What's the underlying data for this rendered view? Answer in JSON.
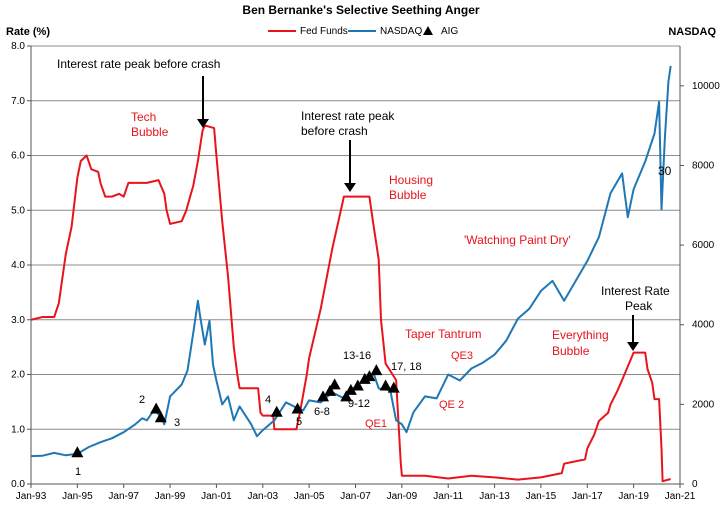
{
  "chart_data": {
    "type": "line",
    "title": "Ben Bernanke's Selective Seething Anger",
    "ylabel_left": "Rate (%)",
    "ylabel_right": "NASDAQ",
    "xlim": [
      1993.0,
      2021.0
    ],
    "ylim_left": [
      0,
      8
    ],
    "ylim_right": [
      0,
      11000
    ],
    "x_ticks": [
      "Jan-93",
      "Jan-95",
      "Jan-97",
      "Jan-99",
      "Jan-01",
      "Jan-03",
      "Jan-05",
      "Jan-07",
      "Jan-09",
      "Jan-11",
      "Jan-13",
      "Jan-15",
      "Jan-17",
      "Jan-19",
      "Jan-21"
    ],
    "y_ticks_left": [
      "0.0",
      "1.0",
      "2.0",
      "3.0",
      "4.0",
      "5.0",
      "6.0",
      "7.0",
      "8.0"
    ],
    "y_ticks_right": [
      "0",
      "2000",
      "4000",
      "6000",
      "8000",
      "10000"
    ],
    "grid": true,
    "legend_position": "top-center",
    "legend": [
      "Fed Funds",
      "NASDAQ",
      "AIG"
    ],
    "series": [
      {
        "name": "Fed Funds",
        "axis": "left",
        "color": "#e8141b",
        "points": [
          [
            1993.0,
            3.0
          ],
          [
            1993.5,
            3.05
          ],
          [
            1994.0,
            3.05
          ],
          [
            1994.2,
            3.3
          ],
          [
            1994.5,
            4.2
          ],
          [
            1994.75,
            4.7
          ],
          [
            1995.0,
            5.6
          ],
          [
            1995.15,
            5.9
          ],
          [
            1995.4,
            6.0
          ],
          [
            1995.6,
            5.75
          ],
          [
            1995.9,
            5.7
          ],
          [
            1996.0,
            5.5
          ],
          [
            1996.2,
            5.25
          ],
          [
            1996.5,
            5.25
          ],
          [
            1996.8,
            5.3
          ],
          [
            1997.0,
            5.25
          ],
          [
            1997.2,
            5.5
          ],
          [
            1997.5,
            5.5
          ],
          [
            1998.0,
            5.5
          ],
          [
            1998.5,
            5.55
          ],
          [
            1998.75,
            5.3
          ],
          [
            1998.85,
            5.0
          ],
          [
            1999.0,
            4.75
          ],
          [
            1999.5,
            4.8
          ],
          [
            1999.7,
            5.0
          ],
          [
            1999.9,
            5.3
          ],
          [
            2000.0,
            5.45
          ],
          [
            2000.2,
            5.9
          ],
          [
            2000.4,
            6.45
          ],
          [
            2000.5,
            6.55
          ],
          [
            2000.9,
            6.5
          ],
          [
            2001.0,
            6.0
          ],
          [
            2001.25,
            4.8
          ],
          [
            2001.5,
            3.8
          ],
          [
            2001.75,
            2.5
          ],
          [
            2001.9,
            2.0
          ],
          [
            2002.0,
            1.75
          ],
          [
            2002.8,
            1.75
          ],
          [
            2002.9,
            1.3
          ],
          [
            2003.0,
            1.25
          ],
          [
            2003.45,
            1.25
          ],
          [
            2003.5,
            1.0
          ],
          [
            2004.45,
            1.0
          ],
          [
            2004.6,
            1.3
          ],
          [
            2004.9,
            2.0
          ],
          [
            2005.0,
            2.3
          ],
          [
            2005.5,
            3.2
          ],
          [
            2006.0,
            4.3
          ],
          [
            2006.5,
            5.25
          ],
          [
            2007.0,
            5.25
          ],
          [
            2007.6,
            5.25
          ],
          [
            2007.75,
            4.8
          ],
          [
            2008.0,
            4.1
          ],
          [
            2008.1,
            3.0
          ],
          [
            2008.3,
            2.2
          ],
          [
            2008.75,
            1.9
          ],
          [
            2008.95,
            0.4
          ],
          [
            2009.0,
            0.15
          ],
          [
            2010.0,
            0.15
          ],
          [
            2011.0,
            0.1
          ],
          [
            2012.0,
            0.15
          ],
          [
            2013.0,
            0.12
          ],
          [
            2014.0,
            0.08
          ],
          [
            2015.0,
            0.12
          ],
          [
            2015.9,
            0.2
          ],
          [
            2016.0,
            0.37
          ],
          [
            2016.9,
            0.45
          ],
          [
            2017.0,
            0.65
          ],
          [
            2017.3,
            0.9
          ],
          [
            2017.5,
            1.15
          ],
          [
            2017.9,
            1.3
          ],
          [
            2018.0,
            1.45
          ],
          [
            2018.3,
            1.7
          ],
          [
            2018.5,
            1.9
          ],
          [
            2018.8,
            2.2
          ],
          [
            2019.0,
            2.4
          ],
          [
            2019.5,
            2.4
          ],
          [
            2019.6,
            2.1
          ],
          [
            2019.8,
            1.85
          ],
          [
            2019.9,
            1.55
          ],
          [
            2020.1,
            1.55
          ],
          [
            2020.2,
            0.65
          ],
          [
            2020.25,
            0.05
          ],
          [
            2020.5,
            0.08
          ],
          [
            2020.6,
            0.09
          ]
        ]
      },
      {
        "name": "NASDAQ",
        "axis": "right",
        "color": "#1f78b4",
        "points": [
          [
            1993.0,
            700
          ],
          [
            1993.5,
            710
          ],
          [
            1994.0,
            780
          ],
          [
            1994.5,
            720
          ],
          [
            1995.0,
            760
          ],
          [
            1995.5,
            930
          ],
          [
            1996.0,
            1050
          ],
          [
            1996.5,
            1150
          ],
          [
            1997.0,
            1300
          ],
          [
            1997.5,
            1500
          ],
          [
            1997.8,
            1650
          ],
          [
            1998.0,
            1600
          ],
          [
            1998.3,
            1850
          ],
          [
            1998.6,
            1700
          ],
          [
            1998.75,
            1500
          ],
          [
            1999.0,
            2200
          ],
          [
            1999.5,
            2500
          ],
          [
            1999.75,
            2850
          ],
          [
            2000.0,
            3800
          ],
          [
            2000.2,
            4600
          ],
          [
            2000.3,
            4200
          ],
          [
            2000.5,
            3500
          ],
          [
            2000.7,
            4100
          ],
          [
            2000.85,
            3000
          ],
          [
            2001.0,
            2600
          ],
          [
            2001.25,
            2000
          ],
          [
            2001.5,
            2200
          ],
          [
            2001.75,
            1600
          ],
          [
            2002.0,
            1950
          ],
          [
            2002.5,
            1500
          ],
          [
            2002.75,
            1200
          ],
          [
            2003.0,
            1350
          ],
          [
            2003.5,
            1600
          ],
          [
            2004.0,
            2050
          ],
          [
            2004.5,
            1900
          ],
          [
            2004.75,
            1850
          ],
          [
            2005.0,
            2100
          ],
          [
            2005.5,
            2050
          ],
          [
            2006.0,
            2300
          ],
          [
            2006.5,
            2150
          ],
          [
            2007.0,
            2450
          ],
          [
            2007.5,
            2650
          ],
          [
            2007.8,
            2750
          ],
          [
            2008.0,
            2400
          ],
          [
            2008.5,
            2350
          ],
          [
            2008.75,
            1600
          ],
          [
            2009.0,
            1500
          ],
          [
            2009.2,
            1300
          ],
          [
            2009.5,
            1800
          ],
          [
            2010.0,
            2200
          ],
          [
            2010.5,
            2150
          ],
          [
            2011.0,
            2750
          ],
          [
            2011.5,
            2600
          ],
          [
            2012.0,
            2900
          ],
          [
            2012.5,
            3050
          ],
          [
            2013.0,
            3250
          ],
          [
            2013.5,
            3600
          ],
          [
            2014.0,
            4150
          ],
          [
            2014.5,
            4400
          ],
          [
            2015.0,
            4850
          ],
          [
            2015.5,
            5100
          ],
          [
            2016.0,
            4600
          ],
          [
            2016.5,
            5100
          ],
          [
            2017.0,
            5600
          ],
          [
            2017.5,
            6200
          ],
          [
            2018.0,
            7300
          ],
          [
            2018.5,
            7800
          ],
          [
            2018.75,
            6700
          ],
          [
            2019.0,
            7400
          ],
          [
            2019.5,
            8100
          ],
          [
            2019.9,
            8800
          ],
          [
            2020.1,
            9600
          ],
          [
            2020.2,
            6900
          ],
          [
            2020.35,
            8700
          ],
          [
            2020.5,
            10100
          ],
          [
            2020.6,
            10500
          ]
        ]
      },
      {
        "name": "AIG",
        "type": "marker",
        "axis": "left",
        "points": [
          [
            1995.0,
            0.58
          ],
          [
            1998.4,
            1.38
          ],
          [
            1998.6,
            1.22
          ],
          [
            2003.6,
            1.32
          ],
          [
            2004.5,
            1.38
          ],
          [
            2005.6,
            1.6
          ],
          [
            2005.9,
            1.7
          ],
          [
            2006.1,
            1.82
          ],
          [
            2006.6,
            1.6
          ],
          [
            2006.8,
            1.72
          ],
          [
            2007.1,
            1.8
          ],
          [
            2007.4,
            1.92
          ],
          [
            2007.6,
            1.97
          ],
          [
            2007.9,
            2.08
          ],
          [
            2008.3,
            1.8
          ],
          [
            2008.65,
            1.76
          ]
        ]
      }
    ],
    "annotations": [
      {
        "text": "Interest  rate peak before crash",
        "color": "black"
      },
      {
        "text": "Tech",
        "color": "red"
      },
      {
        "text": "Bubble",
        "color": "red"
      },
      {
        "text": "Interest rate peak",
        "color": "black"
      },
      {
        "text": "before crash",
        "color": "black"
      },
      {
        "text": "Housing",
        "color": "red"
      },
      {
        "text": "Bubble",
        "color": "red"
      },
      {
        "text": "'Watching Paint Dry'",
        "color": "red"
      },
      {
        "text": "Interest Rate",
        "color": "black"
      },
      {
        "text": "Peak",
        "color": "black"
      },
      {
        "text": "30",
        "color": "black"
      },
      {
        "text": "Taper Tantrum",
        "color": "red"
      },
      {
        "text": "Everything",
        "color": "red"
      },
      {
        "text": "Bubble",
        "color": "red"
      },
      {
        "text": "QE3",
        "color": "red"
      },
      {
        "text": "QE 2",
        "color": "red"
      },
      {
        "text": "QE1",
        "color": "red"
      },
      {
        "text": "1",
        "color": "black"
      },
      {
        "text": "2",
        "color": "black"
      },
      {
        "text": "3",
        "color": "black"
      },
      {
        "text": "4",
        "color": "black"
      },
      {
        "text": "5",
        "color": "black"
      },
      {
        "text": "6-8",
        "color": "black"
      },
      {
        "text": "9-12",
        "color": "black"
      },
      {
        "text": "13-16",
        "color": "black"
      },
      {
        "text": "17, 18",
        "color": "black"
      }
    ]
  }
}
